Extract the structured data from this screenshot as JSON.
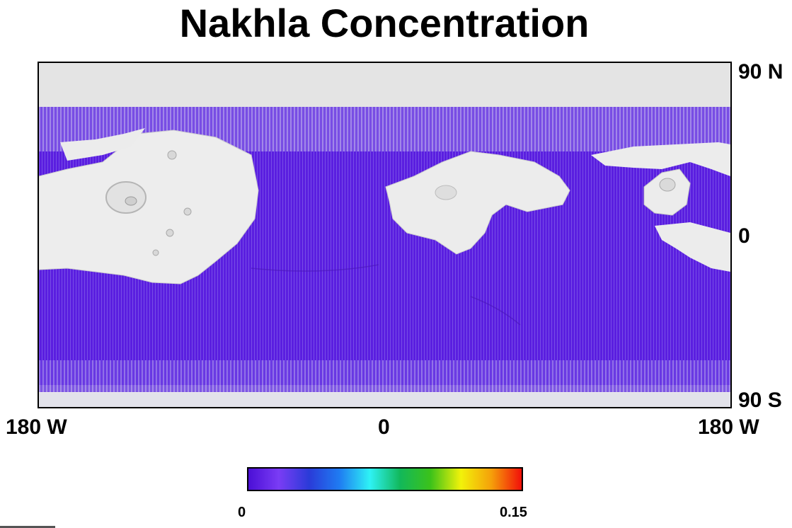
{
  "title": "Nakhla Concentration",
  "map": {
    "latitude_labels": {
      "north": "90 N",
      "equator": "0",
      "south": "90 S"
    },
    "longitude_labels": {
      "left": "180 W",
      "center": "0",
      "right": "180 W"
    },
    "coverage_color": "#5a1ee0",
    "background_color": "#ededed"
  },
  "colorbar": {
    "min_label": "0",
    "max_label": "0.15",
    "colors": [
      "#4b0fd6",
      "#7a3cf5",
      "#2a3bd8",
      "#1f7cf2",
      "#2ef2f5",
      "#12b85a",
      "#3cc21a",
      "#f2f20a",
      "#f5a00a",
      "#f20f0a"
    ]
  }
}
